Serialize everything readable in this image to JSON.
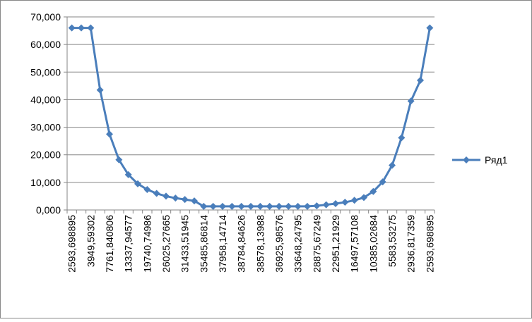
{
  "chart_data": {
    "type": "line",
    "categories": [
      "2593,698895",
      null,
      "3949,59302",
      null,
      "7761,840806",
      null,
      "13337,94577",
      null,
      "19740,74986",
      null,
      "26025,27665",
      null,
      "31433,51945",
      null,
      "35485,86814",
      null,
      "37958,14714",
      null,
      "38784,84626",
      null,
      "38578,13988",
      null,
      "36925,98576",
      null,
      "33648,24795",
      null,
      "28875,67249",
      null,
      "22951,21929",
      null,
      "16497,57108",
      null,
      "10385,02684",
      null,
      "5583,53275",
      null,
      "2936,817359",
      null,
      "2593,698895"
    ],
    "series": [
      {
        "name": "Ряд1",
        "color": "#4a7ebb",
        "values": [
          66000,
          66000,
          66000,
          43500,
          27500,
          18200,
          12800,
          9500,
          7400,
          6000,
          5000,
          4300,
          3800,
          3300,
          1300,
          1300,
          1300,
          1300,
          1300,
          1300,
          1300,
          1300,
          1300,
          1300,
          1300,
          1300,
          1500,
          1900,
          2300,
          2800,
          3500,
          4500,
          6700,
          10200,
          16200,
          26200,
          39500,
          47000,
          66000
        ]
      }
    ],
    "ylim": [
      0,
      70000
    ],
    "yticks": [
      {
        "value": 0,
        "label": "0,000"
      },
      {
        "value": 10000,
        "label": "10,000"
      },
      {
        "value": 20000,
        "label": "20,000"
      },
      {
        "value": 30000,
        "label": "30,000"
      },
      {
        "value": 40000,
        "label": "40,000"
      },
      {
        "value": 50000,
        "label": "50,000"
      },
      {
        "value": 60000,
        "label": "60,000"
      },
      {
        "value": 70000,
        "label": "70,000"
      }
    ],
    "grid": true,
    "legend": "right"
  }
}
